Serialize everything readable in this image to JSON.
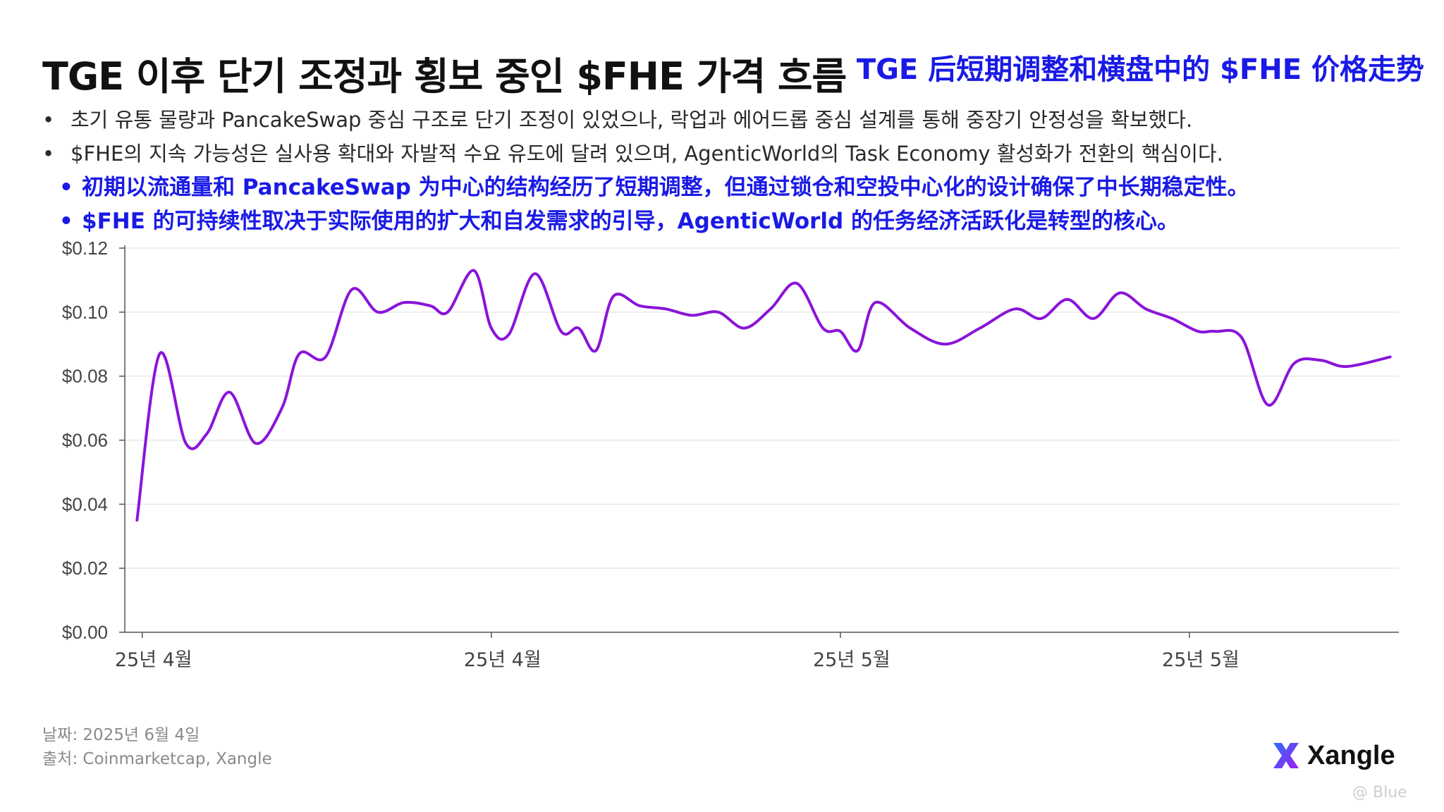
{
  "title_ko": "TGE 이후 단기 조정과 횡보 중인 $FHE 가격 흐름",
  "title_zh": "TGE 后短期调整和横盘中的 $FHE 价格走势",
  "bullets_ko": [
    "초기 유통 물량과 PancakeSwap 중심 구조로 단기 조정이 있었으나, 락업과 에어드롭 중심 설계를 통해 중장기 안정성을 확보했다.",
    "$FHE의 지속 가능성은 실사용 확대와 자발적 수요 유도에 달려 있으며, AgenticWorld의 Task Economy 활성화가 전환의 핵심이다."
  ],
  "bullets_zh": [
    "初期以流通量和 PancakeSwap 为中心的结构经历了短期调整，但通过锁仓和空投中心化的设计确保了中长期稳定性。",
    "$FHE 的可持续性取决于实际使用的扩大和自发需求的引导，AgenticWorld 的任务经济活跃化是转型的核心。"
  ],
  "bullet_symbol": "•",
  "footer": {
    "date": "날짜: 2025년 6월 4일",
    "source": "출처: Coinmarketcap, Xangle"
  },
  "logo": {
    "text": "Xangle",
    "icon": "xangle-x-logo-icon"
  },
  "watermark": "@ Blue",
  "colors": {
    "title": "#111111",
    "chinese_accent": "#1a1ae6",
    "line": "#8a14d9",
    "grid": "#e8e8e8",
    "axis": "#555555",
    "logo_gradient_start": "#2b6cff",
    "logo_gradient_end": "#a020f0"
  },
  "chart_data": {
    "type": "line",
    "title": "",
    "xlabel": "",
    "ylabel": "",
    "ylim": [
      0,
      0.12
    ],
    "yticks": [
      0,
      0.02,
      0.04,
      0.06,
      0.08,
      0.1,
      0.12
    ],
    "ytick_labels": [
      "$0.00",
      "$0.02",
      "$0.04",
      "$0.06",
      "$0.08",
      "$0.10",
      "$0.12"
    ],
    "xticks": [
      1,
      21,
      41,
      61
    ],
    "xtick_labels": [
      "25년 4월",
      "25년 4월",
      "25년 5월",
      "25년 5월"
    ],
    "xlim": [
      0,
      73
    ],
    "grid": true,
    "legend": "none",
    "series": [
      {
        "name": "",
        "x": [
          0.7,
          2,
          3.5,
          4.7,
          6,
          7.5,
          9,
          10,
          11.5,
          13,
          14.5,
          16,
          17.5,
          18.5,
          20,
          21,
          22,
          23.5,
          25,
          26,
          27,
          28,
          29.5,
          31,
          32.5,
          34,
          35.5,
          37,
          38.5,
          40,
          41,
          42,
          43,
          45,
          47,
          49,
          51,
          52.5,
          54,
          55.5,
          57,
          58.5,
          60,
          61.5,
          62.5,
          64,
          65.5,
          67,
          68.5,
          70,
          72.5
        ],
        "y": [
          0.035,
          0.087,
          0.059,
          0.062,
          0.075,
          0.059,
          0.07,
          0.087,
          0.086,
          0.107,
          0.1,
          0.103,
          0.102,
          0.1,
          0.113,
          0.095,
          0.093,
          0.112,
          0.094,
          0.095,
          0.088,
          0.105,
          0.102,
          0.101,
          0.099,
          0.1,
          0.095,
          0.101,
          0.109,
          0.095,
          0.094,
          0.088,
          0.103,
          0.095,
          0.09,
          0.095,
          0.101,
          0.098,
          0.104,
          0.098,
          0.106,
          0.101,
          0.098,
          0.094,
          0.094,
          0.092,
          0.071,
          0.084,
          0.085,
          0.083,
          0.086
        ]
      }
    ]
  }
}
